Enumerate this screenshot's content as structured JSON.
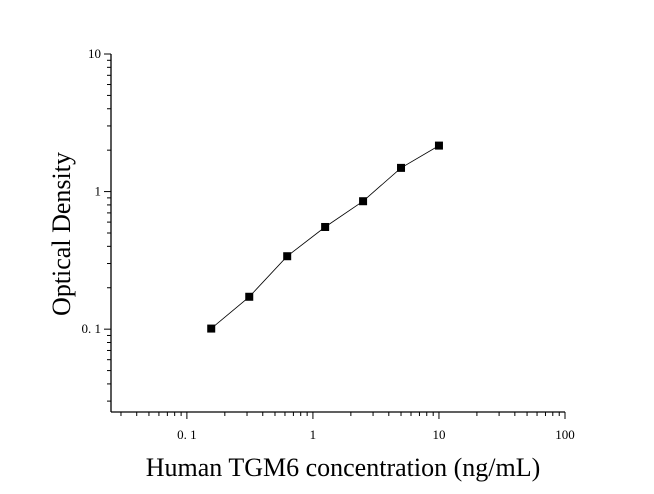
{
  "chart_data": {
    "type": "scatter",
    "title": "",
    "xlabel": "Human TGM6 concentration (ng/mL)",
    "ylabel": "Optical Density",
    "x_scale": "log",
    "y_scale": "log",
    "xlim": [
      0.025,
      100
    ],
    "ylim": [
      0.025,
      10
    ],
    "x_ticks": [
      {
        "value": 0.1,
        "label": "0. 1"
      },
      {
        "value": 1,
        "label": "1"
      },
      {
        "value": 10,
        "label": "10"
      },
      {
        "value": 100,
        "label": "100"
      }
    ],
    "y_ticks": [
      {
        "value": 0.1,
        "label": "0. 1"
      },
      {
        "value": 1,
        "label": "1"
      },
      {
        "value": 10,
        "label": "10"
      }
    ],
    "grid": false,
    "legend": "none",
    "marker_color": "#000000",
    "line_color": "#000000",
    "series": [
      {
        "x": [
          0.156,
          0.3125,
          0.625,
          1.25,
          2.5,
          5,
          10
        ],
        "y": [
          0.101,
          0.172,
          0.339,
          0.553,
          0.851,
          1.487,
          2.159
        ],
        "fit_line": true
      }
    ]
  }
}
